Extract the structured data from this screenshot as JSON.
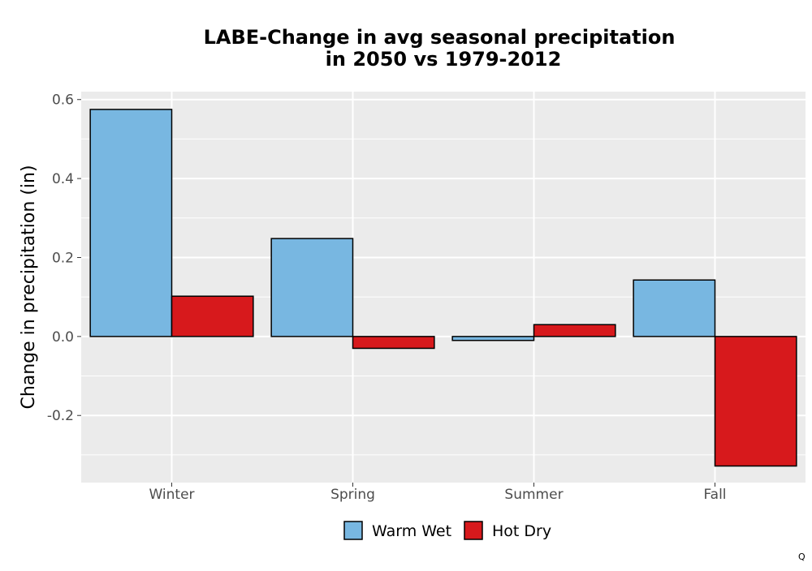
{
  "chart_data": {
    "type": "bar",
    "title": "LABE-Change in avg seasonal precipitation",
    "subtitle": "in 2050 vs 1979-2012",
    "xlabel": "",
    "ylabel": "Change in precipitation (in)",
    "categories": [
      "Winter",
      "Spring",
      "Summer",
      "Fall"
    ],
    "series": [
      {
        "name": "Warm Wet",
        "color": "#78b7e1",
        "values": [
          0.575,
          0.248,
          -0.01,
          0.143
        ]
      },
      {
        "name": "Hot Dry",
        "color": "#d7191c",
        "values": [
          0.102,
          -0.03,
          0.03,
          -0.328
        ]
      }
    ],
    "ylim": [
      -0.37,
      0.62
    ],
    "yticks": [
      -0.2,
      0.0,
      0.2,
      0.4,
      0.6
    ],
    "ytick_labels": [
      "-0.2",
      "0.0",
      "0.2",
      "0.4",
      "0.6"
    ],
    "grid": true,
    "legend_position": "bottom",
    "panel_background": "#ebebeb",
    "corner_mark": "Q"
  }
}
